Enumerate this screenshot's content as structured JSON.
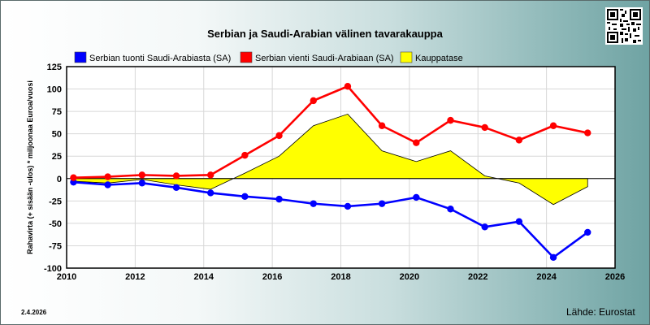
{
  "header": {
    "title": "Serbian ja Saudi-Arabian välinen tavarakauppa",
    "date": "2.4.2026",
    "source": "Lähde: Eurostat"
  },
  "colors": {
    "import": "#0000ff",
    "export": "#ff0000",
    "balance": "#ffff00"
  },
  "chart_data": {
    "type": "line",
    "ylabel": "Rahavirta (+ sisään -ulos)  * miljoonaa Euroa/vuosi",
    "xlim": [
      2010,
      2026
    ],
    "ylim": [
      -100,
      125
    ],
    "x_ticks": [
      2010,
      2012,
      2014,
      2016,
      2018,
      2020,
      2022,
      2024,
      2026
    ],
    "y_ticks": [
      -100,
      -75,
      -50,
      -25,
      0,
      25,
      50,
      75,
      100,
      125
    ],
    "x": [
      2010.2,
      2011.2,
      2012.2,
      2013.2,
      2014.2,
      2015.2,
      2016.2,
      2017.2,
      2018.2,
      2019.2,
      2020.2,
      2021.2,
      2022.2,
      2023.2,
      2024.2,
      2025.2
    ],
    "series": [
      {
        "name": "Serbian tuonti Saudi-Arabiasta (SA)",
        "kind": "line",
        "color": "#0000ff",
        "values": [
          -4,
          -7,
          -5,
          -10,
          -16,
          -20,
          -23,
          -28,
          -31,
          -28,
          -21,
          -34,
          -54,
          -48,
          -88,
          -60
        ]
      },
      {
        "name": "Serbian vienti Saudi-Arabiaan (SA)",
        "kind": "line",
        "color": "#ff0000",
        "values": [
          1,
          2,
          4,
          3,
          4,
          26,
          48,
          87,
          103,
          59,
          40,
          65,
          57,
          43,
          59,
          51
        ]
      },
      {
        "name": "Kauppatase",
        "kind": "area",
        "color": "#ffff00",
        "values": [
          -3,
          -5,
          -1,
          -7,
          -12,
          6,
          25,
          59,
          72,
          31,
          19,
          31,
          3,
          -5,
          -29,
          -9
        ]
      }
    ]
  }
}
